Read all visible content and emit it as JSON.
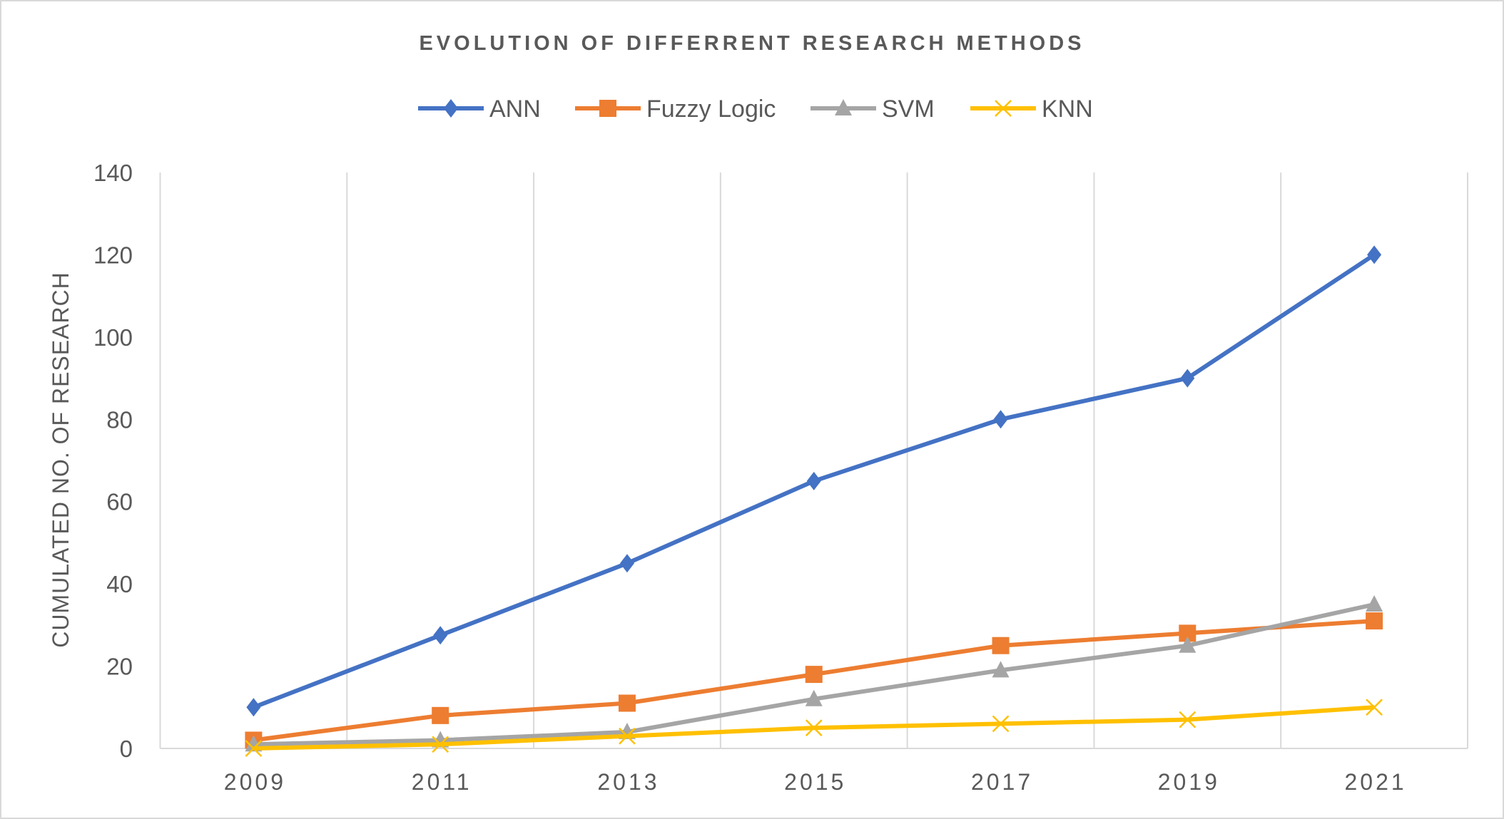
{
  "chart_data": {
    "type": "line",
    "title": "EVOLUTION OF DIFFERRENT RESEARCH METHODS",
    "xlabel": "",
    "ylabel": "CUMULATED NO. OF RESEARCH",
    "categories": [
      "2009",
      "2011",
      "2013",
      "2015",
      "2017",
      "2019",
      "2021"
    ],
    "ylim": [
      0,
      140
    ],
    "yticks": [
      0,
      20,
      40,
      60,
      80,
      100,
      120,
      140
    ],
    "grid": "vertical",
    "legend_position": "top",
    "series": [
      {
        "name": "ANN",
        "color": "#4472C4",
        "marker": "diamond",
        "values": [
          10,
          27.5,
          45,
          65,
          80,
          90,
          120
        ]
      },
      {
        "name": "Fuzzy Logic",
        "color": "#ED7D31",
        "marker": "square",
        "values": [
          2,
          8,
          11,
          18,
          25,
          28,
          31
        ]
      },
      {
        "name": "SVM",
        "color": "#A5A5A5",
        "marker": "triangle",
        "values": [
          1,
          2,
          4,
          12,
          19,
          25,
          35
        ]
      },
      {
        "name": "KNN",
        "color": "#FFC000",
        "marker": "x",
        "values": [
          0,
          1,
          3,
          5,
          6,
          7,
          10
        ]
      }
    ]
  }
}
